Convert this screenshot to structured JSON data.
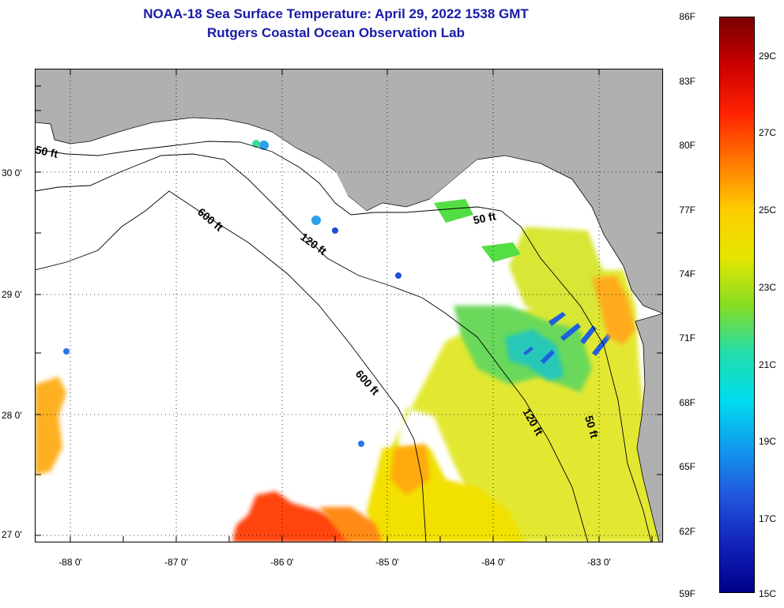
{
  "header": {
    "title": "NOAA-18 Sea Surface Temperature:  April 29, 2022 1538 GMT",
    "subtitle": "Rutgers Coastal Ocean Observation Lab"
  },
  "map": {
    "lat_labels": [
      "30 0'",
      "29 0'",
      "28 0'",
      "27 0'"
    ],
    "lon_labels": [
      "-88 0'",
      "-87 0'",
      "-86 0'",
      "-85 0'",
      "-84 0'",
      "-83 0'"
    ],
    "contours": {
      "c50_west": "50 ft",
      "c50_east": "50 ft",
      "c50_south": "50 ft",
      "c120_north": "120 ft",
      "c120_south": "120 ft",
      "c600_north": "600 ft",
      "c600_south": "600 ft"
    },
    "colors": {
      "land": "#b0b0b0",
      "no_data": "#ffffff"
    }
  },
  "colorbar": {
    "fahrenheit_labels": [
      "86F",
      "83F",
      "80F",
      "77F",
      "74F",
      "71F",
      "68F",
      "65F",
      "62F",
      "59F"
    ],
    "celsius_labels": [
      "29C",
      "27C",
      "25C",
      "23C",
      "21C",
      "19C",
      "17C",
      "15C"
    ],
    "colors": [
      "#7a0000",
      "#cc0000",
      "#ff2200",
      "#ff7700",
      "#ffcc00",
      "#e6e600",
      "#88dd22",
      "#22ddaa",
      "#00ddee",
      "#1199ee",
      "#2255dd",
      "#1122bb",
      "#000088"
    ]
  }
}
